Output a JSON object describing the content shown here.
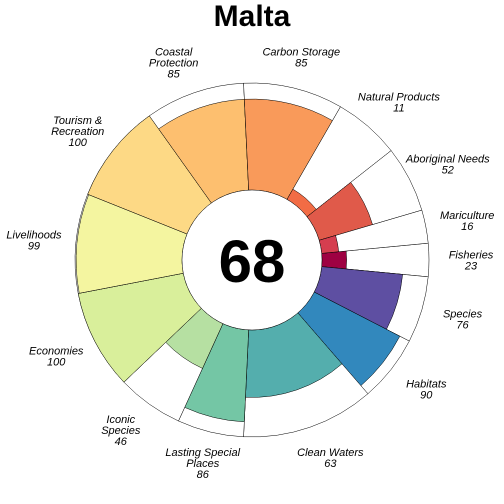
{
  "chart_data": {
    "type": "pie",
    "title": "Malta",
    "center_score": "68",
    "ylim": [
      0,
      100
    ],
    "categories": [
      "Fisheries",
      "Species",
      "Habitats",
      "Clean Waters",
      "Lasting Special Places",
      "Iconic Species",
      "Economies",
      "Livelihoods",
      "Tourism & Recreation",
      "Coastal Protection",
      "Carbon Storage",
      "Natural Products",
      "Aboriginal Needs",
      "Mariculture"
    ],
    "values": [
      23,
      76,
      90,
      63,
      86,
      46,
      100,
      99,
      100,
      85,
      85,
      11,
      52,
      16
    ],
    "weights": [
      0.5,
      1,
      1,
      2,
      1,
      1,
      1.5,
      1.5,
      1.5,
      1.5,
      1.5,
      1,
      1,
      0.5
    ],
    "colors": [
      "#9E0142",
      "#5E4FA2",
      "#3288BD",
      "#54AEAD",
      "#74C6A5",
      "#B6E0A2",
      "#D9EF9B",
      "#F4F5A0",
      "#FDD985",
      "#FDBF6F",
      "#F99A5A",
      "#F26C45",
      "#E05A4A",
      "#D53E4F"
    ],
    "labels": [
      {
        "lines": [
          "Fisheries"
        ],
        "score": "23"
      },
      {
        "lines": [
          "Species"
        ],
        "score": "76"
      },
      {
        "lines": [
          "Habitats"
        ],
        "score": "90"
      },
      {
        "lines": [
          "Clean Waters"
        ],
        "score": "63"
      },
      {
        "lines": [
          "Lasting Special",
          "Places"
        ],
        "score": "86"
      },
      {
        "lines": [
          "Iconic",
          "Species"
        ],
        "score": "46"
      },
      {
        "lines": [
          "Economies"
        ],
        "score": "100"
      },
      {
        "lines": [
          "Livelihoods"
        ],
        "score": "99"
      },
      {
        "lines": [
          "Tourism &",
          "Recreation"
        ],
        "score": "100"
      },
      {
        "lines": [
          "Coastal",
          "Protection"
        ],
        "score": "85"
      },
      {
        "lines": [
          "Carbon Storage"
        ],
        "score": "85"
      },
      {
        "lines": [
          "Natural Products"
        ],
        "score": "11"
      },
      {
        "lines": [
          "Aboriginal Needs"
        ],
        "score": "52"
      },
      {
        "lines": [
          "Mariculture"
        ],
        "score": "16"
      }
    ]
  }
}
